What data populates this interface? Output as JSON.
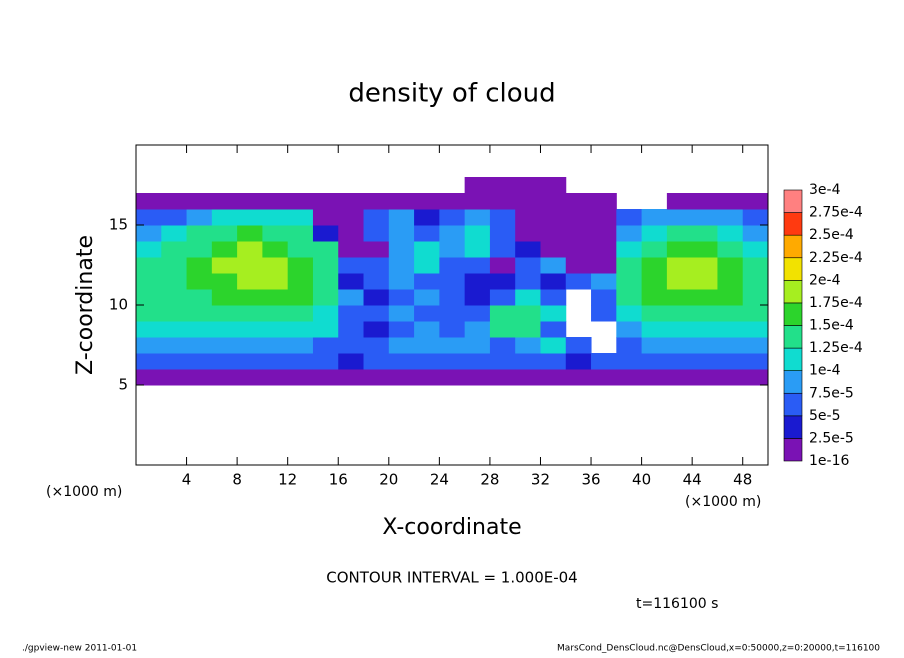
{
  "chart_data": {
    "type": "heatmap",
    "title": "density of cloud",
    "x_label": "X-coordinate",
    "y_label": "Z-coordinate",
    "x_unit_label": "(×1000 m)",
    "y_unit_label": "(×1000 m)",
    "contour_label": "CONTOUR INTERVAL = 1.000E-04",
    "time_label": "t=116100 s",
    "xlim": [
      0,
      50
    ],
    "ylim": [
      0,
      20
    ],
    "xticks": [
      4,
      8,
      12,
      16,
      20,
      24,
      28,
      32,
      36,
      40,
      44,
      48
    ],
    "yticks": [
      5,
      10,
      15
    ],
    "x": [
      1,
      3,
      5,
      7,
      9,
      11,
      13,
      15,
      17,
      19,
      21,
      23,
      25,
      27,
      29,
      31,
      33,
      35,
      37,
      39,
      41,
      43,
      45,
      47,
      49
    ],
    "y": [
      5.5,
      6.5,
      7.5,
      8.5,
      9.5,
      10.5,
      11.5,
      12.5,
      13.5,
      14.5,
      15.5,
      16.5,
      17.5
    ],
    "z": [
      [
        1e-05,
        1e-05,
        1e-05,
        1e-05,
        1e-05,
        1e-05,
        1e-05,
        1e-05,
        1e-05,
        1e-05,
        1e-05,
        1e-05,
        1e-05,
        1e-05,
        1e-05,
        1e-05,
        1e-05,
        1e-05,
        1e-05,
        1e-05,
        1e-05,
        1e-05,
        1e-05,
        1e-05,
        1e-05
      ],
      [
        6e-05,
        6e-05,
        6e-05,
        6e-05,
        6e-05,
        6e-05,
        6e-05,
        6e-05,
        3.5e-05,
        6e-05,
        6e-05,
        6e-05,
        6e-05,
        6e-05,
        6e-05,
        6e-05,
        6e-05,
        3.5e-05,
        6e-05,
        6e-05,
        6e-05,
        6e-05,
        6e-05,
        6e-05,
        6e-05
      ],
      [
        9e-05,
        9e-05,
        9e-05,
        9e-05,
        9e-05,
        9e-05,
        9e-05,
        6e-05,
        6e-05,
        6e-05,
        9e-05,
        9e-05,
        9e-05,
        9e-05,
        6e-05,
        9e-05,
        0.00011,
        6e-05,
        null,
        6e-05,
        9e-05,
        9e-05,
        9e-05,
        9e-05,
        9e-05
      ],
      [
        0.00011,
        0.00011,
        0.00011,
        0.00011,
        0.00011,
        0.00011,
        0.00011,
        0.00011,
        6e-05,
        3.5e-05,
        6e-05,
        9e-05,
        6e-05,
        9e-05,
        0.00014,
        0.00014,
        6e-05,
        null,
        null,
        9e-05,
        0.00011,
        0.00011,
        0.00011,
        0.00011,
        0.00011
      ],
      [
        0.00014,
        0.00014,
        0.00014,
        0.00014,
        0.00014,
        0.00014,
        0.00014,
        0.00011,
        6e-05,
        6e-05,
        9e-05,
        6e-05,
        6e-05,
        6e-05,
        0.00014,
        0.00014,
        0.00011,
        null,
        6e-05,
        0.00011,
        0.00014,
        0.00014,
        0.00014,
        0.00014,
        0.00014
      ],
      [
        0.00014,
        0.00014,
        0.00014,
        0.00016,
        0.00016,
        0.00016,
        0.00016,
        0.00014,
        9e-05,
        3.5e-05,
        6e-05,
        9e-05,
        6e-05,
        3.5e-05,
        6e-05,
        0.00011,
        6e-05,
        null,
        6e-05,
        0.00014,
        0.00016,
        0.00016,
        0.00016,
        0.00016,
        0.00014
      ],
      [
        0.00014,
        0.00014,
        0.00016,
        0.00016,
        0.000185,
        0.000185,
        0.00016,
        0.00014,
        3.5e-05,
        6e-05,
        9e-05,
        6e-05,
        6e-05,
        3.5e-05,
        3.5e-05,
        6e-05,
        3.5e-05,
        6e-05,
        9e-05,
        0.00014,
        0.00016,
        0.000185,
        0.000185,
        0.00016,
        0.00014
      ],
      [
        0.00014,
        0.00014,
        0.00016,
        0.000185,
        0.000185,
        0.000185,
        0.00016,
        0.00014,
        6e-05,
        6e-05,
        9e-05,
        0.00011,
        6e-05,
        6e-05,
        1e-05,
        6e-05,
        9e-05,
        1e-05,
        1e-05,
        0.00014,
        0.00016,
        0.000185,
        0.000185,
        0.00016,
        0.00014
      ],
      [
        0.00011,
        0.00014,
        0.00014,
        0.00016,
        0.000185,
        0.00016,
        0.00014,
        0.00014,
        1e-05,
        1e-05,
        9e-05,
        0.00011,
        9e-05,
        0.00011,
        6e-05,
        3.5e-05,
        1e-05,
        1e-05,
        1e-05,
        0.00011,
        0.00014,
        0.00016,
        0.00016,
        0.00014,
        0.00011
      ],
      [
        9e-05,
        0.00011,
        0.00014,
        0.00014,
        0.00016,
        0.00014,
        0.00014,
        3.5e-05,
        1e-05,
        6e-05,
        9e-05,
        6e-05,
        9e-05,
        0.00011,
        6e-05,
        1e-05,
        1e-05,
        1e-05,
        1e-05,
        9e-05,
        0.00011,
        0.00014,
        0.00014,
        0.00011,
        9e-05
      ],
      [
        6e-05,
        6e-05,
        9e-05,
        0.00011,
        0.00011,
        0.00011,
        0.00011,
        1e-05,
        1e-05,
        6e-05,
        9e-05,
        3.5e-05,
        6e-05,
        9e-05,
        6e-05,
        1e-05,
        1e-05,
        1e-05,
        1e-05,
        6e-05,
        9e-05,
        9e-05,
        9e-05,
        9e-05,
        6e-05
      ],
      [
        1e-05,
        1e-05,
        1e-05,
        1e-05,
        1e-05,
        1e-05,
        1e-05,
        1e-05,
        1e-05,
        1e-05,
        1e-05,
        1e-05,
        1e-05,
        1e-05,
        1e-05,
        1e-05,
        1e-05,
        1e-05,
        1e-05,
        null,
        null,
        1e-05,
        1e-05,
        1e-05,
        1e-05
      ],
      [
        null,
        null,
        null,
        null,
        null,
        null,
        null,
        null,
        null,
        null,
        null,
        null,
        null,
        1e-05,
        1e-05,
        1e-05,
        1e-05,
        null,
        null,
        null,
        null,
        null,
        null,
        null,
        null
      ]
    ],
    "colorbar": {
      "levels": [
        {
          "value": 1e-16,
          "label": "1e-16"
        },
        {
          "value": 2.5e-05,
          "label": "2.5e-5"
        },
        {
          "value": 5e-05,
          "label": "5e-5"
        },
        {
          "value": 7.5e-05,
          "label": "7.5e-5"
        },
        {
          "value": 0.0001,
          "label": "1e-4"
        },
        {
          "value": 0.000125,
          "label": "1.25e-4"
        },
        {
          "value": 0.00015,
          "label": "1.5e-4"
        },
        {
          "value": 0.000175,
          "label": "1.75e-4"
        },
        {
          "value": 0.0002,
          "label": "2e-4"
        },
        {
          "value": 0.000225,
          "label": "2.25e-4"
        },
        {
          "value": 0.00025,
          "label": "2.5e-4"
        },
        {
          "value": 0.000275,
          "label": "2.75e-4"
        },
        {
          "value": 0.0003,
          "label": "3e-4"
        }
      ],
      "colors": [
        "#7a12b4",
        "#1a1ad0",
        "#2a5cf5",
        "#2a9cf5",
        "#10dcd0",
        "#22e08a",
        "#2cd42c",
        "#a6ee20",
        "#f2e200",
        "#ffaa00",
        "#ff3a10",
        "#ff8080"
      ]
    }
  },
  "footer": {
    "left": "./gpview-new  2011-01-01",
    "right": "MarsCond_DensCloud.nc@DensCloud,x=0:50000,z=0:20000,t=116100"
  }
}
